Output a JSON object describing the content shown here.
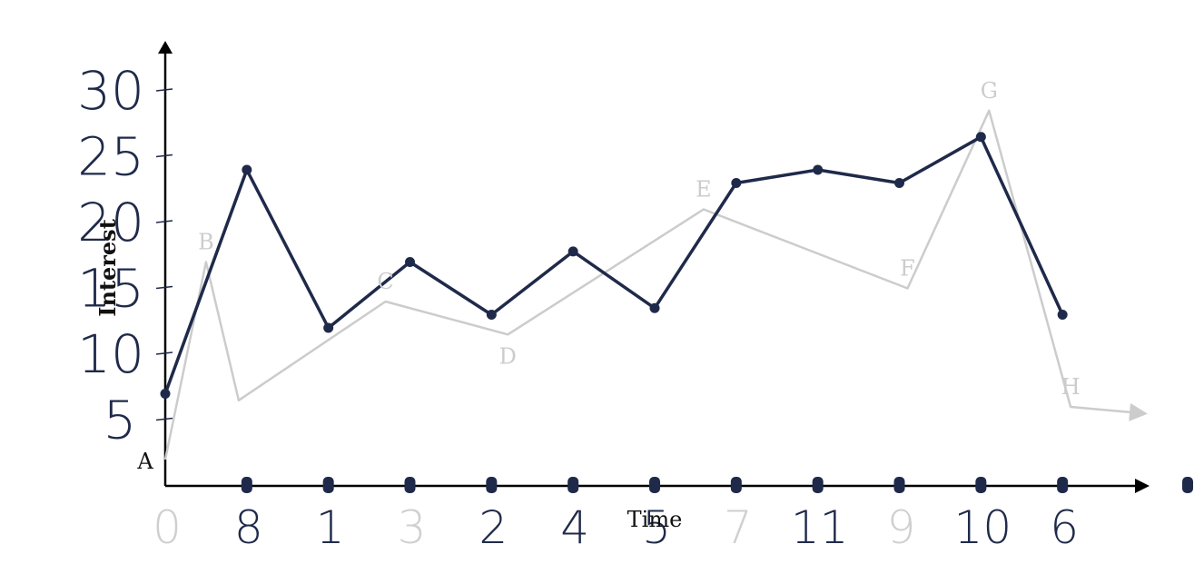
{
  "chart_data": {
    "type": "line",
    "xlabel": "Time",
    "ylabel": "Interest",
    "y_ticks": [
      "5",
      "10",
      "15",
      "20",
      "25",
      "30"
    ],
    "x_ticks": [
      {
        "label": "0",
        "faded": true
      },
      {
        "label": "8",
        "faded": false
      },
      {
        "label": "1",
        "faded": false
      },
      {
        "label": "3",
        "faded": true
      },
      {
        "label": "2",
        "faded": false
      },
      {
        "label": "4",
        "faded": false
      },
      {
        "label": "5",
        "faded": false
      },
      {
        "label": "7",
        "faded": true
      },
      {
        "label": "11",
        "faded": false
      },
      {
        "label": "9",
        "faded": true
      },
      {
        "label": "10",
        "faded": false
      },
      {
        "label": "6",
        "faded": false
      }
    ],
    "series": [
      {
        "name": "",
        "color": "#cccccc",
        "points": [
          {
            "x": 0,
            "y": 2,
            "label": "A"
          },
          {
            "x": 0.5,
            "y": 17,
            "label": "B"
          },
          {
            "x": 0.9,
            "y": 6.5,
            "label": ""
          },
          {
            "x": 2.7,
            "y": 14,
            "label": "C"
          },
          {
            "x": 4.2,
            "y": 11.5,
            "label": "D"
          },
          {
            "x": 6.6,
            "y": 21,
            "label": "E"
          },
          {
            "x": 9.1,
            "y": 15,
            "label": "F"
          },
          {
            "x": 10.1,
            "y": 28.5,
            "label": "G"
          },
          {
            "x": 11.1,
            "y": 6,
            "label": "H"
          },
          {
            "x": 12,
            "y": 5.5,
            "label": ""
          }
        ]
      },
      {
        "name": "",
        "color": "#1f2a4a",
        "points": [
          {
            "x": 0,
            "y": 7
          },
          {
            "x": 1,
            "y": 24
          },
          {
            "x": 2,
            "y": 12
          },
          {
            "x": 3,
            "y": 17
          },
          {
            "x": 4,
            "y": 13
          },
          {
            "x": 5,
            "y": 17.8
          },
          {
            "x": 6,
            "y": 13.5
          },
          {
            "x": 7,
            "y": 23
          },
          {
            "x": 8,
            "y": 24
          },
          {
            "x": 9,
            "y": 23
          },
          {
            "x": 10,
            "y": 26.5
          },
          {
            "x": 11,
            "y": 13
          }
        ]
      }
    ],
    "xlim": [
      0,
      12
    ],
    "ylim": [
      0,
      33
    ],
    "grid": false
  }
}
